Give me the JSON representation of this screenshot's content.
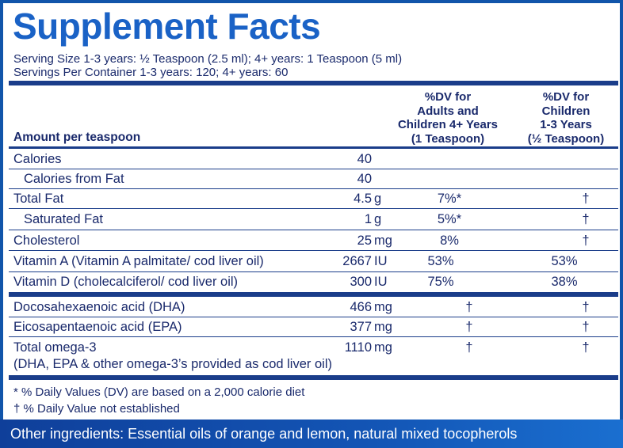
{
  "title": "Supplement Facts",
  "serving_size": "Serving Size 1-3 years: ½ Teaspoon (2.5 ml); 4+ years: 1 Teaspoon (5 ml)",
  "servings_per_container": "Servings Per Container 1-3 years: 120; 4+ years: 60",
  "header": {
    "amount": "Amount per teaspoon",
    "col_adults": [
      "%DV for",
      "Adults and",
      "Children 4+ Years",
      "(1 Teaspoon)"
    ],
    "col_children": [
      "%DV for",
      "Children",
      "1-3 Years",
      "(½ Teaspoon)"
    ]
  },
  "rows": [
    {
      "name": "Calories",
      "amount": "40",
      "unit": "",
      "dv_adult": "",
      "dv_child": ""
    },
    {
      "name": "Calories from Fat",
      "amount": "40",
      "unit": "",
      "dv_adult": "",
      "dv_child": ""
    },
    {
      "name": "Total Fat",
      "amount": "4.5",
      "unit": "g",
      "dv_adult": "7%*",
      "dv_child": "†"
    },
    {
      "name": "Saturated Fat",
      "amount": "1",
      "unit": "g",
      "dv_adult": "5%*",
      "dv_child": "†"
    },
    {
      "name": "Cholesterol",
      "amount": "25",
      "unit": "mg",
      "dv_adult": "8%",
      "dv_child": "†"
    },
    {
      "name": "Vitamin A (Vitamin A palmitate/ cod liver oil)",
      "amount": "2667",
      "unit": "IU",
      "dv_adult": "53%",
      "dv_child": "53%"
    },
    {
      "name": "Vitamin D (cholecalciferol/ cod liver oil)",
      "amount": "300",
      "unit": "IU",
      "dv_adult": "75%",
      "dv_child": "38%"
    },
    {
      "name": "Docosahexaenoic acid (DHA)",
      "amount": "466",
      "unit": "mg",
      "dv_adult": "†",
      "dv_child": "†"
    },
    {
      "name": "Eicosapentaenoic acid (EPA)",
      "amount": "377",
      "unit": "mg",
      "dv_adult": "†",
      "dv_child": "†"
    },
    {
      "name": "Total omega-3",
      "amount": "1110",
      "unit": "mg",
      "dv_adult": "†",
      "dv_child": "†"
    }
  ],
  "omega_note": "(DHA, EPA & other omega-3’s provided as cod liver oil)",
  "footnotes": [
    "* % Daily Values (DV) are based on a 2,000 calorie diet",
    "† % Daily Value not established"
  ],
  "other_ingredients": "Other ingredients: Essential oils of orange and lemon, natural mixed tocopherols",
  "colors": {
    "title": "#1a62c6",
    "border": "#1155aa",
    "text": "#1a2a6c",
    "band": "#1355b5"
  }
}
